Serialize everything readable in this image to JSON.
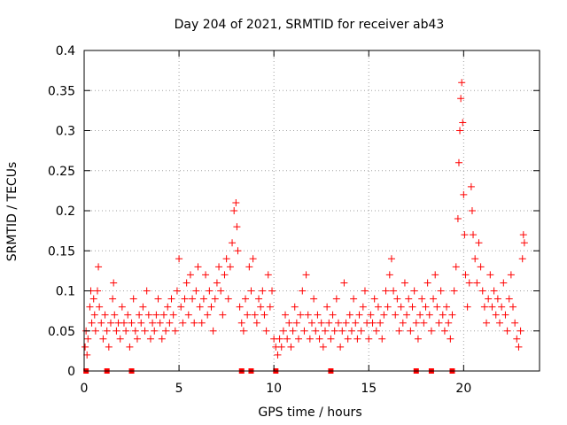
{
  "chart_data": {
    "type": "scatter",
    "title": "Day 204 of 2021, SRMTID for receiver ab43",
    "xlabel": "GPS time / hours",
    "ylabel": "SRMTID / TECUs",
    "xlim": [
      0,
      24
    ],
    "ylim": [
      0,
      0.4
    ],
    "xticks": [
      0,
      5,
      10,
      15,
      20
    ],
    "yticks": [
      0,
      0.05,
      0.1,
      0.15,
      0.2,
      0.25,
      0.3,
      0.35,
      0.4
    ],
    "xtick_labels": [
      "0",
      "5",
      "10",
      "15",
      "20"
    ],
    "ytick_labels": [
      "0",
      "0.05",
      "0.1",
      "0.15",
      "0.2",
      "0.25",
      "0.3",
      "0.35",
      "0.4"
    ],
    "grid": true,
    "marker": "+",
    "color": "#ff0000",
    "series_name": "SRMTID",
    "baseline_points_x": [
      0.1,
      1.2,
      2.5,
      8.3,
      8.8,
      10.1,
      13.0,
      17.5,
      18.3,
      19.4
    ],
    "points": [
      [
        0.05,
        0.03
      ],
      [
        0.1,
        0.05
      ],
      [
        0.15,
        0.02
      ],
      [
        0.2,
        0.04
      ],
      [
        0.3,
        0.08
      ],
      [
        0.35,
        0.1
      ],
      [
        0.4,
        0.06
      ],
      [
        0.5,
        0.09
      ],
      [
        0.55,
        0.07
      ],
      [
        0.6,
        0.05
      ],
      [
        0.7,
        0.1
      ],
      [
        0.75,
        0.13
      ],
      [
        0.8,
        0.08
      ],
      [
        0.9,
        0.06
      ],
      [
        1.0,
        0.04
      ],
      [
        1.1,
        0.07
      ],
      [
        1.2,
        0.05
      ],
      [
        1.3,
        0.03
      ],
      [
        1.4,
        0.06
      ],
      [
        1.5,
        0.09
      ],
      [
        1.55,
        0.11
      ],
      [
        1.6,
        0.07
      ],
      [
        1.7,
        0.05
      ],
      [
        1.8,
        0.06
      ],
      [
        1.9,
        0.04
      ],
      [
        2.0,
        0.08
      ],
      [
        2.1,
        0.06
      ],
      [
        2.2,
        0.05
      ],
      [
        2.3,
        0.07
      ],
      [
        2.4,
        0.03
      ],
      [
        2.5,
        0.06
      ],
      [
        2.6,
        0.09
      ],
      [
        2.7,
        0.05
      ],
      [
        2.8,
        0.04
      ],
      [
        2.9,
        0.07
      ],
      [
        3.0,
        0.06
      ],
      [
        3.1,
        0.08
      ],
      [
        3.2,
        0.05
      ],
      [
        3.3,
        0.1
      ],
      [
        3.4,
        0.07
      ],
      [
        3.5,
        0.04
      ],
      [
        3.6,
        0.06
      ],
      [
        3.7,
        0.05
      ],
      [
        3.8,
        0.07
      ],
      [
        3.9,
        0.09
      ],
      [
        4.0,
        0.06
      ],
      [
        4.1,
        0.04
      ],
      [
        4.2,
        0.07
      ],
      [
        4.3,
        0.05
      ],
      [
        4.4,
        0.08
      ],
      [
        4.5,
        0.06
      ],
      [
        4.6,
        0.09
      ],
      [
        4.7,
        0.07
      ],
      [
        4.8,
        0.05
      ],
      [
        4.9,
        0.1
      ],
      [
        5.0,
        0.14
      ],
      [
        5.1,
        0.08
      ],
      [
        5.2,
        0.06
      ],
      [
        5.3,
        0.09
      ],
      [
        5.4,
        0.11
      ],
      [
        5.5,
        0.07
      ],
      [
        5.6,
        0.12
      ],
      [
        5.7,
        0.09
      ],
      [
        5.8,
        0.06
      ],
      [
        5.9,
        0.1
      ],
      [
        6.0,
        0.13
      ],
      [
        6.1,
        0.08
      ],
      [
        6.2,
        0.06
      ],
      [
        6.3,
        0.09
      ],
      [
        6.4,
        0.12
      ],
      [
        6.5,
        0.07
      ],
      [
        6.6,
        0.1
      ],
      [
        6.7,
        0.08
      ],
      [
        6.8,
        0.05
      ],
      [
        6.9,
        0.09
      ],
      [
        7.0,
        0.11
      ],
      [
        7.1,
        0.13
      ],
      [
        7.2,
        0.1
      ],
      [
        7.3,
        0.07
      ],
      [
        7.4,
        0.12
      ],
      [
        7.5,
        0.14
      ],
      [
        7.6,
        0.09
      ],
      [
        7.7,
        0.13
      ],
      [
        7.8,
        0.16
      ],
      [
        7.9,
        0.2
      ],
      [
        8.0,
        0.21
      ],
      [
        8.05,
        0.18
      ],
      [
        8.1,
        0.15
      ],
      [
        8.2,
        0.08
      ],
      [
        8.3,
        0.06
      ],
      [
        8.4,
        0.05
      ],
      [
        8.5,
        0.09
      ],
      [
        8.6,
        0.07
      ],
      [
        8.7,
        0.13
      ],
      [
        8.8,
        0.1
      ],
      [
        8.9,
        0.14
      ],
      [
        9.0,
        0.07
      ],
      [
        9.1,
        0.06
      ],
      [
        9.2,
        0.09
      ],
      [
        9.3,
        0.08
      ],
      [
        9.4,
        0.1
      ],
      [
        9.5,
        0.07
      ],
      [
        9.6,
        0.05
      ],
      [
        9.7,
        0.12
      ],
      [
        9.8,
        0.08
      ],
      [
        9.9,
        0.1
      ],
      [
        10.0,
        0.04
      ],
      [
        10.1,
        0.03
      ],
      [
        10.2,
        0.02
      ],
      [
        10.3,
        0.04
      ],
      [
        10.4,
        0.03
      ],
      [
        10.5,
        0.05
      ],
      [
        10.6,
        0.07
      ],
      [
        10.7,
        0.04
      ],
      [
        10.8,
        0.06
      ],
      [
        10.9,
        0.03
      ],
      [
        11.0,
        0.05
      ],
      [
        11.1,
        0.08
      ],
      [
        11.2,
        0.06
      ],
      [
        11.3,
        0.04
      ],
      [
        11.4,
        0.07
      ],
      [
        11.5,
        0.1
      ],
      [
        11.6,
        0.05
      ],
      [
        11.7,
        0.12
      ],
      [
        11.8,
        0.07
      ],
      [
        11.9,
        0.04
      ],
      [
        12.0,
        0.06
      ],
      [
        12.1,
        0.09
      ],
      [
        12.2,
        0.05
      ],
      [
        12.3,
        0.07
      ],
      [
        12.4,
        0.04
      ],
      [
        12.5,
        0.06
      ],
      [
        12.6,
        0.03
      ],
      [
        12.7,
        0.05
      ],
      [
        12.8,
        0.08
      ],
      [
        12.9,
        0.06
      ],
      [
        13.0,
        0.04
      ],
      [
        13.1,
        0.07
      ],
      [
        13.2,
        0.05
      ],
      [
        13.3,
        0.09
      ],
      [
        13.4,
        0.06
      ],
      [
        13.5,
        0.03
      ],
      [
        13.6,
        0.05
      ],
      [
        13.7,
        0.11
      ],
      [
        13.8,
        0.06
      ],
      [
        13.9,
        0.04
      ],
      [
        14.0,
        0.07
      ],
      [
        14.1,
        0.05
      ],
      [
        14.2,
        0.09
      ],
      [
        14.3,
        0.06
      ],
      [
        14.4,
        0.04
      ],
      [
        14.5,
        0.07
      ],
      [
        14.6,
        0.05
      ],
      [
        14.7,
        0.08
      ],
      [
        14.8,
        0.1
      ],
      [
        14.9,
        0.06
      ],
      [
        15.0,
        0.04
      ],
      [
        15.1,
        0.07
      ],
      [
        15.2,
        0.06
      ],
      [
        15.3,
        0.09
      ],
      [
        15.4,
        0.05
      ],
      [
        15.5,
        0.08
      ],
      [
        15.6,
        0.06
      ],
      [
        15.7,
        0.04
      ],
      [
        15.8,
        0.07
      ],
      [
        15.9,
        0.1
      ],
      [
        16.0,
        0.08
      ],
      [
        16.1,
        0.12
      ],
      [
        16.2,
        0.14
      ],
      [
        16.3,
        0.1
      ],
      [
        16.4,
        0.07
      ],
      [
        16.5,
        0.09
      ],
      [
        16.6,
        0.05
      ],
      [
        16.7,
        0.08
      ],
      [
        16.8,
        0.06
      ],
      [
        16.9,
        0.11
      ],
      [
        17.0,
        0.07
      ],
      [
        17.1,
        0.09
      ],
      [
        17.2,
        0.05
      ],
      [
        17.3,
        0.08
      ],
      [
        17.4,
        0.1
      ],
      [
        17.5,
        0.06
      ],
      [
        17.6,
        0.04
      ],
      [
        17.7,
        0.07
      ],
      [
        17.8,
        0.09
      ],
      [
        17.9,
        0.06
      ],
      [
        18.0,
        0.08
      ],
      [
        18.1,
        0.11
      ],
      [
        18.2,
        0.07
      ],
      [
        18.3,
        0.05
      ],
      [
        18.4,
        0.09
      ],
      [
        18.5,
        0.12
      ],
      [
        18.6,
        0.08
      ],
      [
        18.7,
        0.06
      ],
      [
        18.8,
        0.1
      ],
      [
        18.9,
        0.07
      ],
      [
        19.0,
        0.05
      ],
      [
        19.1,
        0.08
      ],
      [
        19.2,
        0.06
      ],
      [
        19.3,
        0.04
      ],
      [
        19.4,
        0.07
      ],
      [
        19.5,
        0.1
      ],
      [
        19.6,
        0.13
      ],
      [
        19.7,
        0.19
      ],
      [
        19.75,
        0.26
      ],
      [
        19.8,
        0.3
      ],
      [
        19.85,
        0.34
      ],
      [
        19.9,
        0.36
      ],
      [
        19.95,
        0.31
      ],
      [
        20.0,
        0.22
      ],
      [
        20.05,
        0.17
      ],
      [
        20.1,
        0.12
      ],
      [
        20.2,
        0.08
      ],
      [
        20.3,
        0.11
      ],
      [
        20.4,
        0.23
      ],
      [
        20.45,
        0.2
      ],
      [
        20.5,
        0.17
      ],
      [
        20.6,
        0.14
      ],
      [
        20.7,
        0.11
      ],
      [
        20.8,
        0.16
      ],
      [
        20.9,
        0.13
      ],
      [
        21.0,
        0.1
      ],
      [
        21.1,
        0.08
      ],
      [
        21.2,
        0.06
      ],
      [
        21.3,
        0.09
      ],
      [
        21.4,
        0.12
      ],
      [
        21.5,
        0.08
      ],
      [
        21.6,
        0.1
      ],
      [
        21.7,
        0.07
      ],
      [
        21.8,
        0.09
      ],
      [
        21.9,
        0.06
      ],
      [
        22.0,
        0.08
      ],
      [
        22.1,
        0.11
      ],
      [
        22.2,
        0.07
      ],
      [
        22.3,
        0.05
      ],
      [
        22.4,
        0.09
      ],
      [
        22.5,
        0.12
      ],
      [
        22.6,
        0.08
      ],
      [
        22.7,
        0.06
      ],
      [
        22.8,
        0.04
      ],
      [
        22.9,
        0.03
      ],
      [
        23.0,
        0.05
      ],
      [
        23.1,
        0.14
      ],
      [
        23.15,
        0.17
      ],
      [
        23.2,
        0.16
      ]
    ]
  }
}
